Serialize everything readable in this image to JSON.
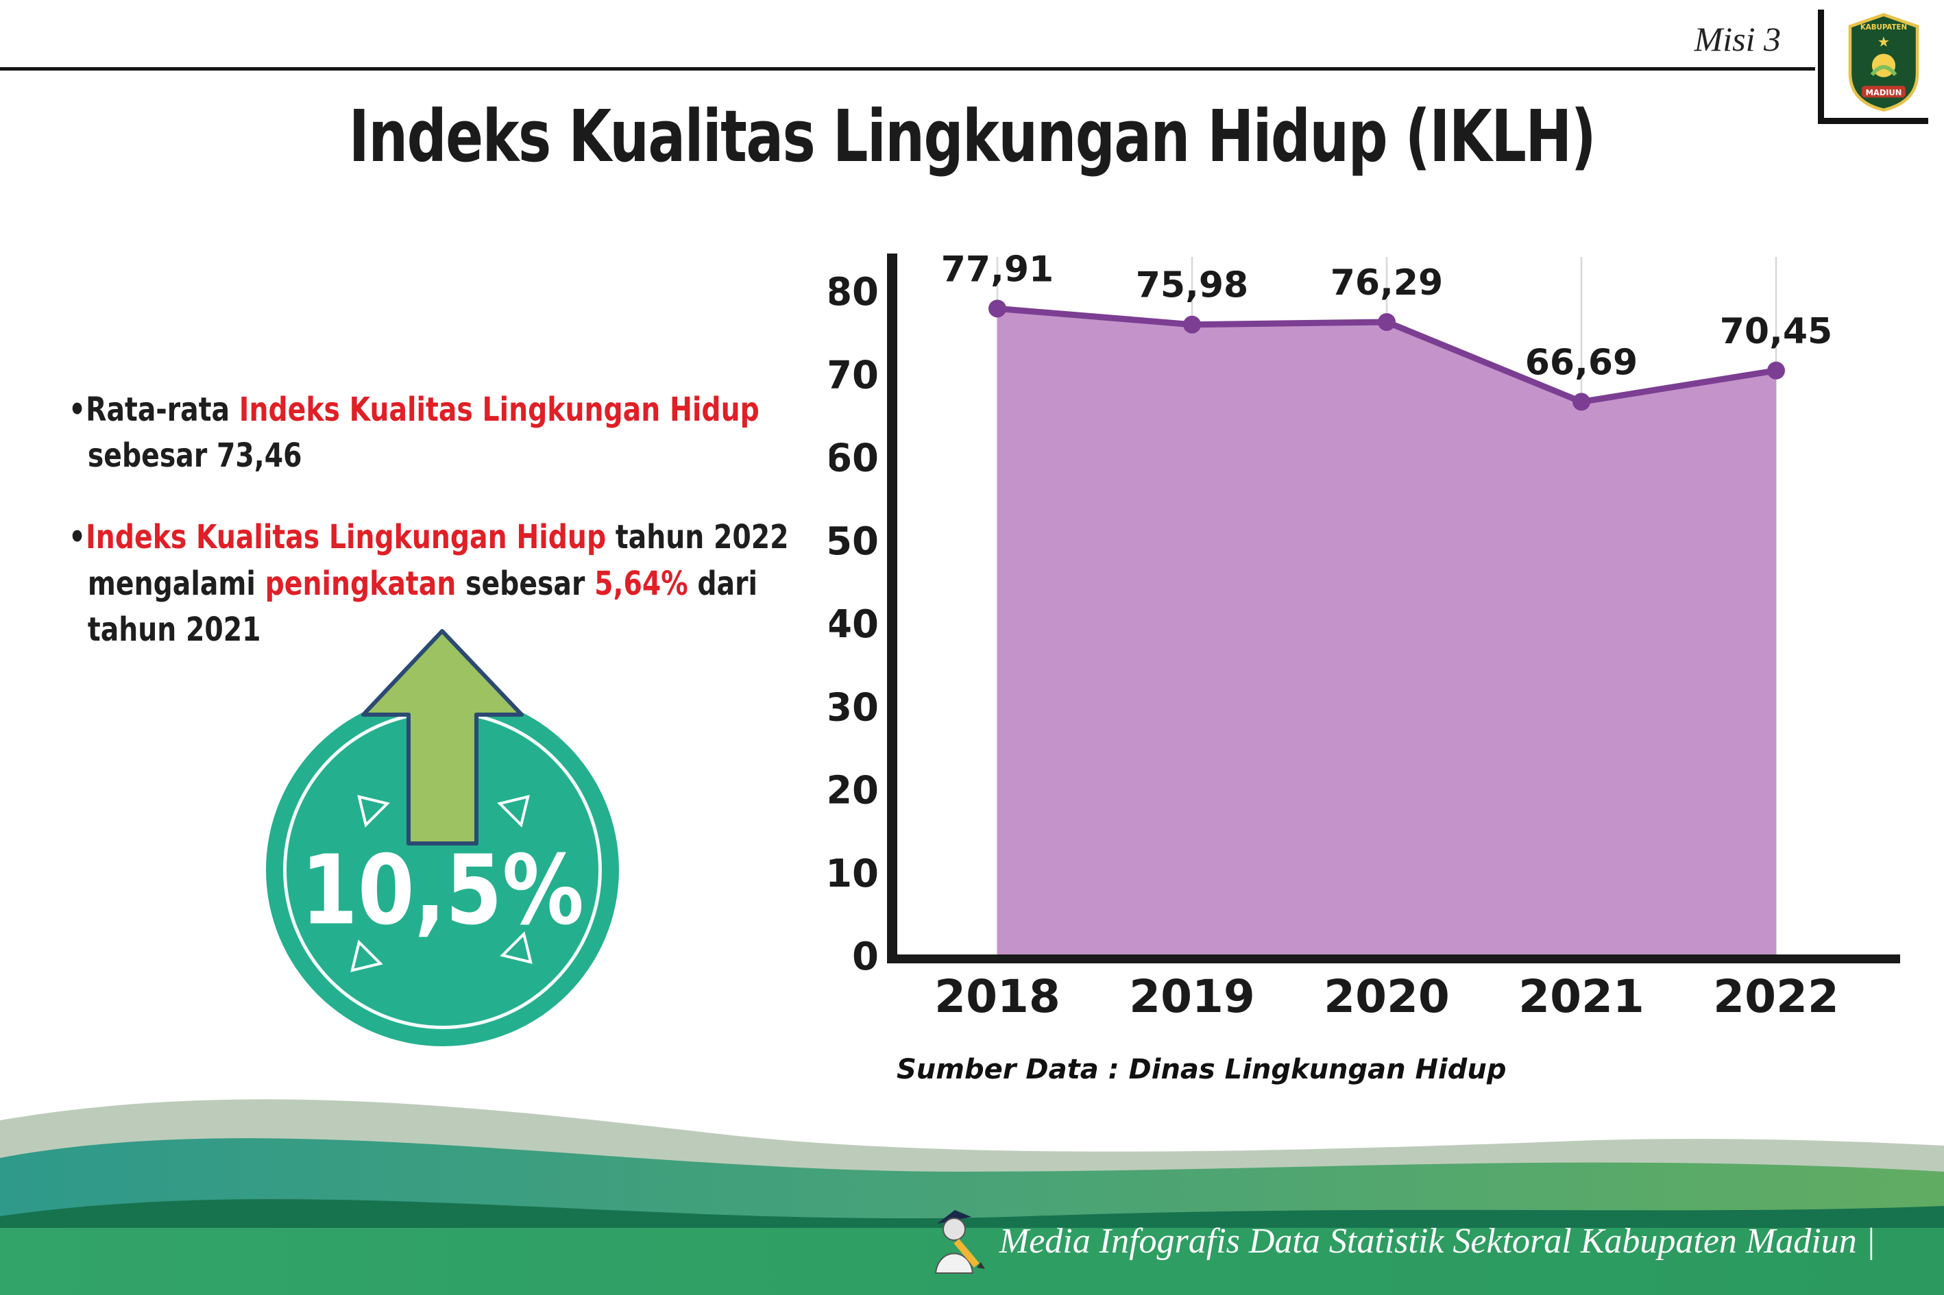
{
  "page": {
    "label": "Misi 3",
    "title": "Indeks Kualitas Lingkungan Hidup (IKLH)"
  },
  "bullets": [
    {
      "segments": [
        {
          "text": "Rata-rata ",
          "color": "black"
        },
        {
          "text": "Indeks Kualitas Lingkungan Hidup",
          "color": "red"
        },
        {
          "text": "\nsebesar 73,46",
          "color": "black"
        }
      ]
    },
    {
      "segments": [
        {
          "text": "Indeks Kualitas Lingkungan Hidup",
          "color": "red"
        },
        {
          "text": " tahun 2022\nmengalami ",
          "color": "black"
        },
        {
          "text": "peningkatan",
          "color": "red"
        },
        {
          "text": " sebesar ",
          "color": "black"
        },
        {
          "text": "5,64%",
          "color": "red"
        },
        {
          "text": " dari\ntahun 2021",
          "color": "black"
        }
      ]
    }
  ],
  "badge": {
    "value": "10,5%"
  },
  "chart_data": {
    "type": "area",
    "categories": [
      "2018",
      "2019",
      "2020",
      "2021",
      "2022"
    ],
    "values": [
      77.91,
      75.98,
      76.29,
      66.69,
      70.45
    ],
    "value_labels": [
      "77,91",
      "75,98",
      "76,29",
      "66,69",
      "70,45"
    ],
    "ylim": [
      0,
      80
    ],
    "yticks": [
      0,
      10,
      20,
      30,
      40,
      50,
      60,
      70,
      80
    ],
    "xlabel": "",
    "ylabel": "",
    "grid": "vertical",
    "legend": "none",
    "line_color": "#7b3e92",
    "fill_color": "#c493ca",
    "source": "Sumber Data : Dinas Lingkungan Hidup"
  },
  "footer": {
    "caption": "Media Infografis Data Statistik Sektoral Kabupaten Madiun |"
  },
  "logo": {
    "top_text": "KABUPATEN",
    "bottom_text": "MADIUN"
  },
  "colors": {
    "accent_red": "#e01f26",
    "badge_teal": "#24b08e",
    "arrow_green": "#9cc261",
    "chart_line_purple": "#7b3e92",
    "chart_fill_purple": "#c493ca",
    "footer_green": "#2f9f63"
  },
  "icons": {
    "badge_arrow": "arrow-up-icon",
    "footer_mascot": "writer-mascot-icon",
    "logo": "kabupaten-madiun-logo"
  }
}
